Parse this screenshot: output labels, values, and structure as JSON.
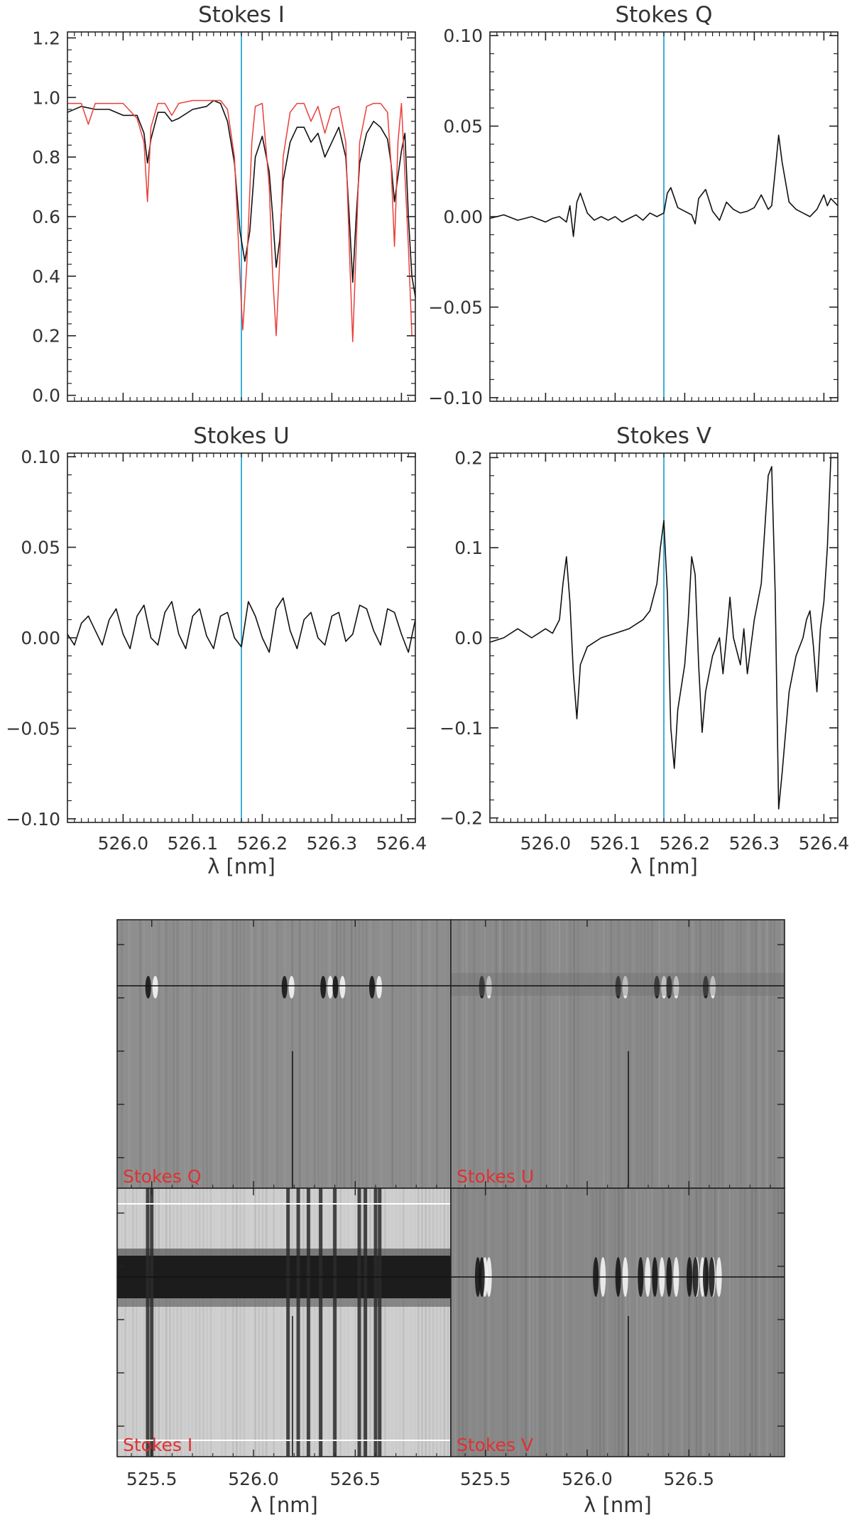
{
  "colors": {
    "axis": "#222222",
    "text": "#333333",
    "observed": "#111111",
    "model": "#e8403a",
    "marker": "#2aa7d6",
    "panel_label": "#e03030",
    "image_bg": "#8c8c8c"
  },
  "chart_data": [
    {
      "type": "line",
      "title": "Stokes I",
      "xlim": [
        525.92,
        526.42
      ],
      "ylim": [
        -0.02,
        1.22
      ],
      "xticks": [
        526.0,
        526.1,
        526.2,
        526.3,
        526.4
      ],
      "xtick_labels": [
        "",
        "",
        "",
        "",
        ""
      ],
      "yticks": [
        0.0,
        0.2,
        0.4,
        0.6,
        0.8,
        1.0,
        1.2
      ],
      "ytick_labels": [
        "0.0",
        "0.2",
        "0.4",
        "0.6",
        "0.8",
        "1.0",
        "1.2"
      ],
      "xlabel": "",
      "marker_x": 526.17,
      "series": [
        {
          "color": "#111111",
          "x": [
            525.92,
            525.94,
            525.96,
            525.98,
            526.0,
            526.02,
            526.03,
            526.035,
            526.04,
            526.05,
            526.06,
            526.07,
            526.08,
            526.1,
            526.12,
            526.13,
            526.14,
            526.15,
            526.16,
            526.168,
            526.175,
            526.182,
            526.19,
            526.2,
            526.21,
            526.215,
            526.22,
            526.225,
            526.23,
            526.24,
            526.25,
            526.26,
            526.27,
            526.28,
            526.29,
            526.3,
            526.31,
            526.32,
            526.325,
            526.33,
            526.335,
            526.34,
            526.35,
            526.36,
            526.37,
            526.38,
            526.385,
            526.39,
            526.4,
            526.405,
            526.41,
            526.415,
            526.42
          ],
          "y": [
            0.95,
            0.97,
            0.96,
            0.96,
            0.94,
            0.94,
            0.88,
            0.78,
            0.86,
            0.95,
            0.95,
            0.92,
            0.93,
            0.96,
            0.97,
            0.99,
            0.98,
            0.92,
            0.78,
            0.55,
            0.45,
            0.55,
            0.8,
            0.87,
            0.75,
            0.6,
            0.43,
            0.52,
            0.72,
            0.85,
            0.9,
            0.9,
            0.85,
            0.88,
            0.8,
            0.85,
            0.9,
            0.8,
            0.6,
            0.38,
            0.6,
            0.78,
            0.88,
            0.92,
            0.9,
            0.86,
            0.78,
            0.65,
            0.82,
            0.88,
            0.6,
            0.4,
            0.33
          ]
        },
        {
          "color": "#e8403a",
          "x": [
            525.92,
            525.94,
            525.95,
            525.96,
            525.98,
            526.0,
            526.02,
            526.03,
            526.035,
            526.04,
            526.05,
            526.06,
            526.07,
            526.08,
            526.1,
            526.12,
            526.14,
            526.15,
            526.16,
            526.165,
            526.17,
            526.172,
            526.178,
            526.185,
            526.19,
            526.2,
            526.21,
            526.215,
            526.22,
            526.225,
            526.23,
            526.24,
            526.25,
            526.26,
            526.27,
            526.28,
            526.29,
            526.3,
            526.31,
            526.32,
            526.325,
            526.33,
            526.335,
            526.34,
            526.35,
            526.36,
            526.37,
            526.38,
            526.385,
            526.39,
            526.395,
            526.4,
            526.41,
            526.415,
            526.42
          ],
          "y": [
            0.98,
            0.98,
            0.91,
            0.98,
            0.98,
            0.98,
            0.93,
            0.85,
            0.65,
            0.9,
            0.98,
            0.98,
            0.94,
            0.98,
            0.99,
            0.99,
            0.99,
            0.96,
            0.8,
            0.55,
            0.3,
            0.22,
            0.45,
            0.85,
            0.97,
            0.98,
            0.7,
            0.4,
            0.2,
            0.45,
            0.8,
            0.95,
            0.98,
            0.98,
            0.92,
            0.97,
            0.88,
            0.96,
            0.97,
            0.85,
            0.5,
            0.18,
            0.5,
            0.85,
            0.97,
            0.98,
            0.98,
            0.95,
            0.78,
            0.5,
            0.85,
            0.98,
            0.5,
            0.2,
            0.2
          ]
        }
      ]
    },
    {
      "type": "line",
      "title": "Stokes Q",
      "xlim": [
        525.92,
        526.42
      ],
      "ylim": [
        -0.102,
        0.102
      ],
      "xticks": [
        526.0,
        526.1,
        526.2,
        526.3,
        526.4
      ],
      "xtick_labels": [
        "",
        "",
        "",
        "",
        ""
      ],
      "yticks": [
        -0.1,
        -0.05,
        0.0,
        0.05,
        0.1
      ],
      "ytick_labels": [
        "−0.10",
        "−0.05",
        "0.00",
        "0.05",
        "0.10"
      ],
      "xlabel": "",
      "marker_x": 526.17,
      "series": [
        {
          "color": "#111111",
          "x": [
            525.92,
            525.94,
            525.96,
            525.98,
            526.0,
            526.01,
            526.02,
            526.03,
            526.035,
            526.04,
            526.045,
            526.05,
            526.06,
            526.07,
            526.08,
            526.09,
            526.1,
            526.11,
            526.12,
            526.13,
            526.14,
            526.15,
            526.16,
            526.17,
            526.175,
            526.18,
            526.19,
            526.2,
            526.21,
            526.215,
            526.22,
            526.23,
            526.24,
            526.25,
            526.26,
            526.27,
            526.28,
            526.29,
            526.3,
            526.31,
            526.32,
            526.325,
            526.33,
            526.335,
            526.34,
            526.35,
            526.36,
            526.37,
            526.38,
            526.39,
            526.4,
            526.405,
            526.41,
            526.42
          ],
          "y": [
            -0.001,
            0.001,
            -0.002,
            0.0,
            -0.003,
            -0.001,
            0.0,
            -0.003,
            0.006,
            -0.011,
            0.008,
            0.013,
            0.002,
            -0.002,
            0.0,
            -0.002,
            0.0,
            -0.003,
            -0.001,
            0.001,
            -0.002,
            0.002,
            0.0,
            0.002,
            0.013,
            0.016,
            0.005,
            0.003,
            0.001,
            -0.004,
            0.01,
            0.015,
            0.003,
            -0.002,
            0.008,
            0.004,
            0.002,
            0.003,
            0.005,
            0.012,
            0.004,
            0.006,
            0.025,
            0.045,
            0.03,
            0.008,
            0.004,
            0.002,
            0.0,
            0.004,
            0.012,
            0.006,
            0.01,
            0.006
          ]
        }
      ]
    },
    {
      "type": "line",
      "title": "Stokes U",
      "xlim": [
        525.92,
        526.42
      ],
      "ylim": [
        -0.102,
        0.102
      ],
      "xticks": [
        526.0,
        526.1,
        526.2,
        526.3,
        526.4
      ],
      "xtick_labels": [
        "526.0",
        "526.1",
        "526.2",
        "526.3",
        "526.4"
      ],
      "yticks": [
        -0.1,
        -0.05,
        0.0,
        0.05,
        0.1
      ],
      "ytick_labels": [
        "−0.10",
        "−0.05",
        "0.00",
        "0.05",
        "0.10"
      ],
      "xlabel": "λ [nm]",
      "marker_x": 526.17,
      "series": [
        {
          "color": "#111111",
          "x": [
            525.92,
            525.93,
            525.94,
            525.95,
            525.96,
            525.97,
            525.98,
            525.99,
            526.0,
            526.01,
            526.02,
            526.03,
            526.04,
            526.05,
            526.06,
            526.07,
            526.08,
            526.09,
            526.1,
            526.11,
            526.12,
            526.13,
            526.14,
            526.15,
            526.16,
            526.17,
            526.18,
            526.19,
            526.2,
            526.21,
            526.22,
            526.23,
            526.24,
            526.25,
            526.26,
            526.27,
            526.28,
            526.29,
            526.3,
            526.31,
            526.32,
            526.33,
            526.34,
            526.35,
            526.36,
            526.37,
            526.38,
            526.39,
            526.4,
            526.41,
            526.42
          ],
          "y": [
            0.002,
            -0.004,
            0.008,
            0.012,
            0.004,
            -0.004,
            0.01,
            0.016,
            0.002,
            -0.006,
            0.012,
            0.018,
            0.0,
            -0.004,
            0.014,
            0.02,
            0.002,
            -0.006,
            0.012,
            0.016,
            0.001,
            -0.006,
            0.012,
            0.014,
            0.0,
            -0.005,
            0.02,
            0.012,
            0.0,
            -0.008,
            0.016,
            0.022,
            0.004,
            -0.006,
            0.01,
            0.014,
            0.0,
            -0.004,
            0.012,
            0.014,
            -0.002,
            0.002,
            0.018,
            0.016,
            0.004,
            -0.004,
            0.016,
            0.014,
            0.002,
            -0.008,
            0.01
          ]
        }
      ]
    },
    {
      "type": "line",
      "title": "Stokes V",
      "xlim": [
        525.92,
        526.42
      ],
      "ylim": [
        -0.205,
        0.205
      ],
      "xticks": [
        526.0,
        526.1,
        526.2,
        526.3,
        526.4
      ],
      "xtick_labels": [
        "526.0",
        "526.1",
        "526.2",
        "526.3",
        "526.4"
      ],
      "yticks": [
        -0.2,
        -0.1,
        0.0,
        0.1,
        0.2
      ],
      "ytick_labels": [
        "−0.2",
        "−0.1",
        "0.0",
        "0.1",
        "0.2"
      ],
      "xlabel": "λ [nm]",
      "marker_x": 526.17,
      "series": [
        {
          "color": "#111111",
          "x": [
            525.92,
            525.94,
            525.96,
            525.98,
            526.0,
            526.01,
            526.02,
            526.025,
            526.03,
            526.035,
            526.04,
            526.045,
            526.05,
            526.06,
            526.07,
            526.08,
            526.1,
            526.12,
            526.14,
            526.15,
            526.16,
            526.165,
            526.17,
            526.175,
            526.18,
            526.185,
            526.19,
            526.2,
            526.205,
            526.21,
            526.215,
            526.22,
            526.225,
            526.23,
            526.24,
            526.25,
            526.255,
            526.26,
            526.265,
            526.27,
            526.28,
            526.285,
            526.29,
            526.3,
            526.31,
            526.32,
            526.325,
            526.33,
            526.335,
            526.34,
            526.35,
            526.36,
            526.37,
            526.375,
            526.38,
            526.385,
            526.39,
            526.395,
            526.4,
            526.405,
            526.41,
            526.42
          ],
          "y": [
            -0.005,
            0.0,
            0.01,
            0.0,
            0.01,
            0.005,
            0.02,
            0.06,
            0.09,
            0.04,
            -0.04,
            -0.09,
            -0.03,
            -0.01,
            -0.005,
            0.0,
            0.005,
            0.01,
            0.02,
            0.03,
            0.06,
            0.1,
            0.13,
            0.05,
            -0.1,
            -0.145,
            -0.08,
            -0.03,
            0.02,
            0.09,
            0.07,
            -0.03,
            -0.105,
            -0.06,
            -0.02,
            0.0,
            -0.04,
            0.0,
            0.045,
            0.0,
            -0.03,
            0.01,
            -0.04,
            0.02,
            0.06,
            0.18,
            0.19,
            0.05,
            -0.19,
            -0.15,
            -0.06,
            -0.02,
            0.0,
            0.02,
            0.03,
            -0.01,
            -0.06,
            0.01,
            0.04,
            0.1,
            0.2,
            0.2
          ]
        }
      ]
    },
    {
      "type": "heatmap",
      "title": "",
      "label": "Stokes Q",
      "xlim": [
        525.33,
        526.97
      ],
      "xticks": [
        525.5,
        526.0,
        526.5
      ],
      "xtick_labels": [
        "",
        "",
        ""
      ],
      "xlabel": "",
      "background": "#8e8e8e",
      "lines": [
        525.5,
        526.17,
        526.36,
        526.42,
        526.6
      ]
    },
    {
      "type": "heatmap",
      "title": "",
      "label": "Stokes U",
      "xlim": [
        525.33,
        526.97
      ],
      "xticks": [
        525.5,
        526.0,
        526.5
      ],
      "xtick_labels": [
        "",
        "",
        ""
      ],
      "xlabel": "",
      "background": "#8a8a8a",
      "lines": [
        525.5,
        526.17,
        526.36,
        526.42,
        526.6
      ]
    },
    {
      "type": "heatmap",
      "title": "",
      "label": "Stokes I",
      "xlim": [
        525.33,
        526.97
      ],
      "xticks": [
        525.5,
        526.0,
        526.5
      ],
      "xtick_labels": [
        "525.5",
        "526.0",
        "526.5"
      ],
      "xlabel": "λ [nm]",
      "background": "#cfcfcf",
      "lines": [
        525.48,
        525.5,
        526.17,
        526.22,
        526.27,
        526.33,
        526.4,
        526.52,
        526.55,
        526.6,
        526.62
      ]
    },
    {
      "type": "heatmap",
      "title": "",
      "label": "Stokes V",
      "xlim": [
        525.33,
        526.97
      ],
      "xticks": [
        525.5,
        526.0,
        526.5
      ],
      "xtick_labels": [
        "525.5",
        "526.0",
        "526.5"
      ],
      "xlabel": "λ [nm]",
      "background": "#888888",
      "lines": [
        525.48,
        525.5,
        526.06,
        526.17,
        526.28,
        526.35,
        526.42,
        526.52,
        526.55,
        526.6,
        526.63
      ]
    }
  ]
}
